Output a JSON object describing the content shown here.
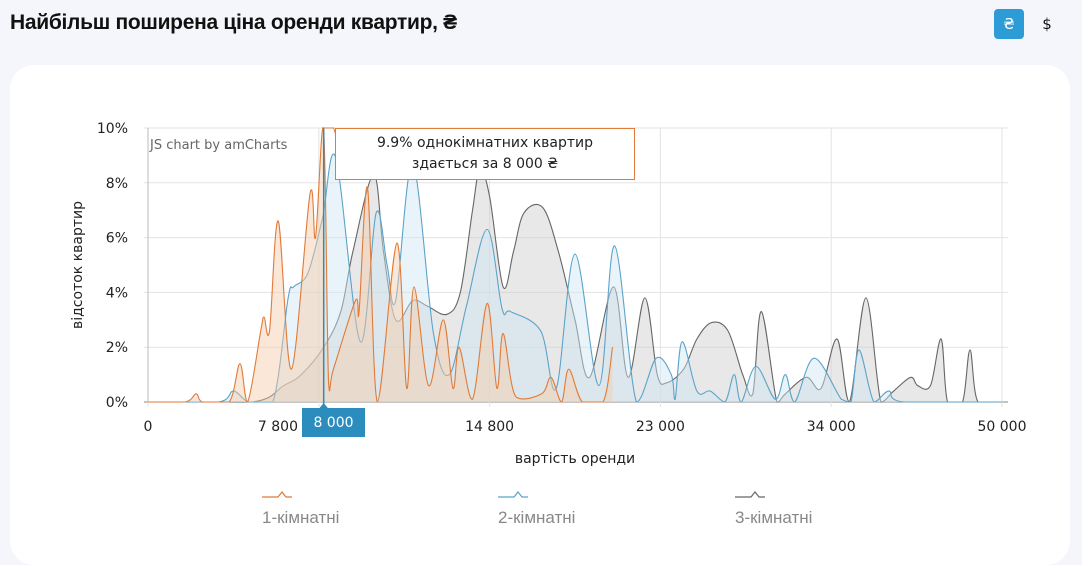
{
  "header": {
    "title": "Найбільш поширена ціна оренди квартир, ₴",
    "currency_buttons": [
      {
        "label": "₴",
        "active": true
      },
      {
        "label": "$",
        "active": false
      }
    ]
  },
  "colors": {
    "accent": "#2d9bd6",
    "series1": "#e07b39",
    "series2": "#5ba3c9",
    "series3": "#666666"
  },
  "chart_data": {
    "type": "area",
    "credit": "JS chart by amCharts",
    "xlabel": "вартість оренди",
    "ylabel": "відсоток квартир",
    "x_ticks": [
      "0",
      "7 800",
      "14 800",
      "23 000",
      "34 000",
      "50 000"
    ],
    "x_tick_values": [
      0,
      7800,
      14800,
      23000,
      34000,
      50000
    ],
    "y_ticks": [
      "0%",
      "2%",
      "4%",
      "6%",
      "8%",
      "10%"
    ],
    "ylim": [
      0,
      10
    ],
    "grid": true,
    "legend_position": "bottom",
    "cursor": {
      "x_label": "8 000",
      "tooltip_line1": "9.9% однокімнатних квартир",
      "tooltip_line2": "здається за 8 000 ₴"
    },
    "series": [
      {
        "name": "1-кімнатні",
        "color": "#e07b39",
        "fill": "#f7c9a6",
        "points": [
          [
            0,
            0
          ],
          [
            1700,
            0
          ],
          [
            2200,
            0.3
          ],
          [
            2500,
            0
          ],
          [
            3700,
            0
          ],
          [
            4200,
            1.4
          ],
          [
            4550,
            0
          ],
          [
            5150,
            2.6
          ],
          [
            5300,
            3.1
          ],
          [
            5550,
            2.6
          ],
          [
            5950,
            6.6
          ],
          [
            6550,
            1.2
          ],
          [
            7400,
            7.6
          ],
          [
            7650,
            6.0
          ],
          [
            8000,
            9.9
          ],
          [
            8200,
            0.7
          ],
          [
            8400,
            1.2
          ],
          [
            9300,
            3.7
          ],
          [
            9450,
            3.3
          ],
          [
            9800,
            7.8
          ],
          [
            10200,
            0
          ],
          [
            11000,
            5.8
          ],
          [
            11400,
            0.5
          ],
          [
            11700,
            4.2
          ],
          [
            12300,
            0.6
          ],
          [
            12900,
            3.0
          ],
          [
            13300,
            0.5
          ],
          [
            13550,
            2.0
          ],
          [
            14100,
            0.1
          ],
          [
            14700,
            3.6
          ],
          [
            15150,
            0.5
          ],
          [
            15450,
            2.5
          ],
          [
            16050,
            0.2
          ],
          [
            17300,
            0.3
          ],
          [
            17750,
            0.9
          ],
          [
            18250,
            0
          ],
          [
            18600,
            1.2
          ],
          [
            19250,
            0
          ],
          [
            20250,
            0
          ],
          [
            20700,
            2.0
          ]
        ]
      },
      {
        "name": "2-кімнатні",
        "color": "#5ba3c9",
        "fill": "#cfe6f4",
        "points": [
          [
            0,
            0
          ],
          [
            3200,
            0
          ],
          [
            3900,
            0.4
          ],
          [
            4600,
            0
          ],
          [
            5700,
            0
          ],
          [
            6400,
            3.8
          ],
          [
            6650,
            4.2
          ],
          [
            7300,
            4.7
          ],
          [
            7950,
            6.7
          ],
          [
            8500,
            8.9
          ],
          [
            9500,
            2.2
          ],
          [
            10150,
            6.9
          ],
          [
            10600,
            5.0
          ],
          [
            10950,
            3.7
          ],
          [
            11650,
            8.7
          ],
          [
            12500,
            2.5
          ],
          [
            13150,
            1.0
          ],
          [
            13850,
            3.5
          ],
          [
            14700,
            6.3
          ],
          [
            15400,
            3.4
          ],
          [
            15800,
            3.3
          ],
          [
            17250,
            2.6
          ],
          [
            18000,
            0.5
          ],
          [
            18900,
            5.4
          ],
          [
            20050,
            0.6
          ],
          [
            20800,
            5.7
          ],
          [
            21850,
            0
          ],
          [
            22800,
            1.6
          ],
          [
            23700,
            1.0
          ],
          [
            23950,
            0.1
          ],
          [
            24400,
            2.2
          ],
          [
            25350,
            0.4
          ],
          [
            26200,
            0.4
          ],
          [
            27150,
            0
          ],
          [
            27750,
            1.0
          ],
          [
            28200,
            0
          ],
          [
            29150,
            1.3
          ],
          [
            30400,
            0.1
          ],
          [
            31050,
            1.0
          ],
          [
            31650,
            0
          ],
          [
            32900,
            1.6
          ],
          [
            34950,
            0.1
          ],
          [
            35850,
            0
          ],
          [
            36600,
            1.9
          ],
          [
            38000,
            0
          ],
          [
            39400,
            0.4
          ],
          [
            40800,
            0
          ],
          [
            50000,
            0
          ]
        ]
      },
      {
        "name": "3-кімнатні",
        "color": "#666666",
        "fill": "#cccccc",
        "points": [
          [
            0,
            0
          ],
          [
            4750,
            0
          ],
          [
            6200,
            0.6
          ],
          [
            7000,
            1.0
          ],
          [
            8000,
            2.0
          ],
          [
            8700,
            3.3
          ],
          [
            9200,
            5.5
          ],
          [
            10050,
            8.3
          ],
          [
            10450,
            5.5
          ],
          [
            10950,
            3.0
          ],
          [
            11650,
            3.7
          ],
          [
            12250,
            3.5
          ],
          [
            13050,
            3.2
          ],
          [
            13600,
            4.0
          ],
          [
            14100,
            7.0
          ],
          [
            14400,
            8.5
          ],
          [
            14800,
            7.5
          ],
          [
            15450,
            4.2
          ],
          [
            15950,
            5.5
          ],
          [
            16450,
            6.9
          ],
          [
            17350,
            7.1
          ],
          [
            18100,
            5.5
          ],
          [
            18900,
            3.0
          ],
          [
            19600,
            0.9
          ],
          [
            20750,
            4.2
          ],
          [
            21450,
            0.9
          ],
          [
            22250,
            3.8
          ],
          [
            22850,
            1.0
          ],
          [
            23400,
            0.7
          ],
          [
            24500,
            1.2
          ],
          [
            25350,
            2.3
          ],
          [
            26300,
            2.9
          ],
          [
            27350,
            2.6
          ],
          [
            28300,
            1.0
          ],
          [
            28950,
            0.3
          ],
          [
            29500,
            3.3
          ],
          [
            30500,
            0
          ],
          [
            31050,
            0.3
          ],
          [
            32400,
            0.9
          ],
          [
            33350,
            0.5
          ],
          [
            34550,
            2.3
          ],
          [
            35700,
            0
          ],
          [
            37250,
            3.8
          ],
          [
            38650,
            0
          ],
          [
            39850,
            0.4
          ],
          [
            41450,
            0.9
          ],
          [
            42100,
            0.6
          ],
          [
            43300,
            0.6
          ],
          [
            44300,
            2.3
          ],
          [
            44900,
            0
          ],
          [
            46300,
            0
          ],
          [
            47000,
            1.9
          ],
          [
            47750,
            0
          ],
          [
            50000,
            0
          ]
        ]
      }
    ]
  }
}
